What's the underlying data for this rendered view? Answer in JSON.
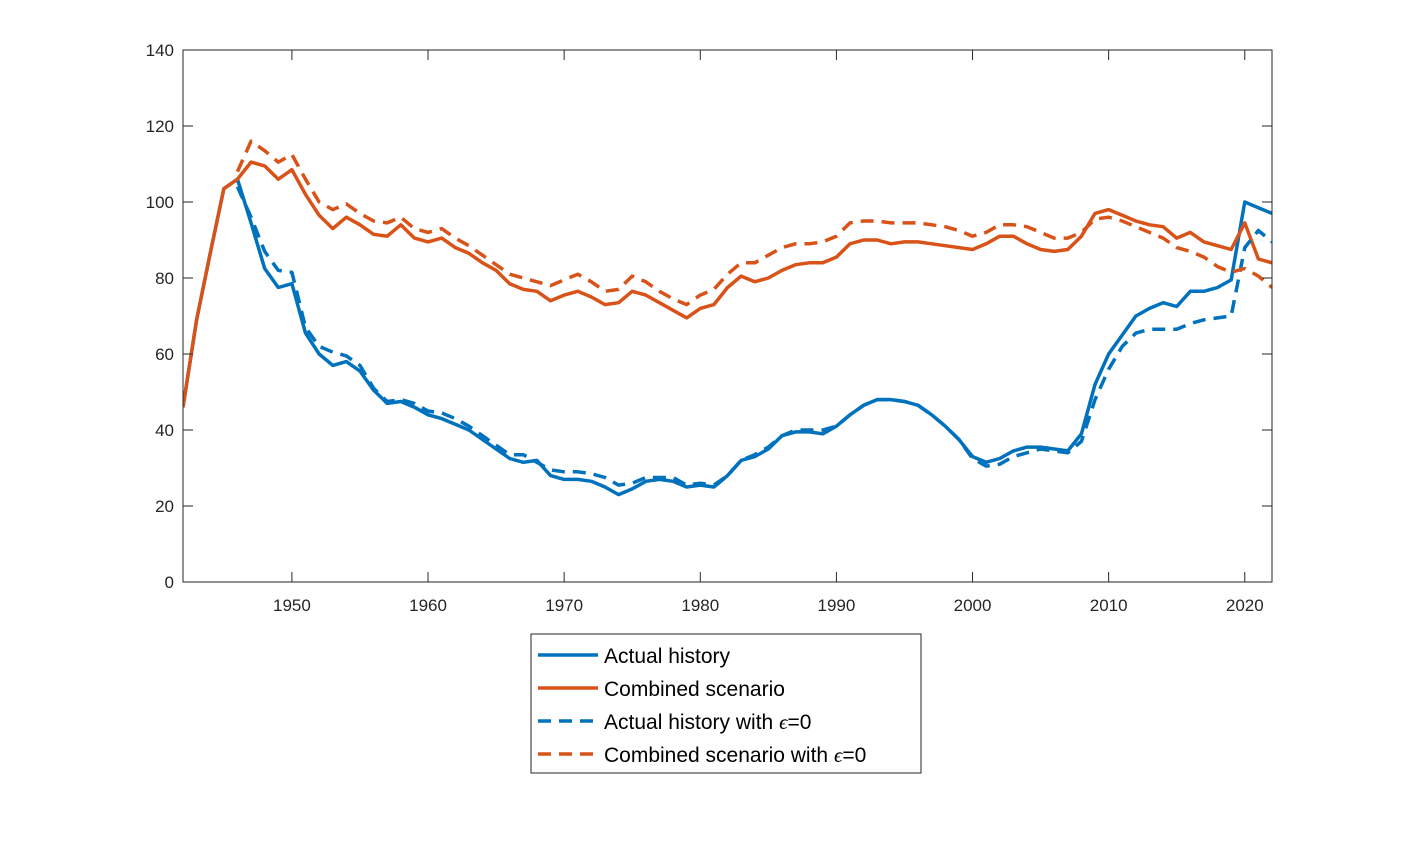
{
  "chart_data": {
    "type": "line",
    "title": "",
    "xlabel": "",
    "ylabel": "",
    "xlim": [
      1942,
      2022
    ],
    "ylim": [
      0,
      140
    ],
    "x_ticks": [
      1950,
      1960,
      1970,
      1980,
      1990,
      2000,
      2010,
      2020
    ],
    "y_ticks": [
      0,
      20,
      40,
      60,
      80,
      100,
      120,
      140
    ],
    "grid": false,
    "legend_position": "bottom-outside",
    "series": [
      {
        "name": "Actual history",
        "name_parts": [
          "Actual history",
          "",
          ""
        ],
        "color": "#0072BD",
        "dash": "solid",
        "x": [
          1942,
          1943,
          1944,
          1945,
          1946,
          1947,
          1948,
          1949,
          1950,
          1951,
          1952,
          1953,
          1954,
          1955,
          1956,
          1957,
          1958,
          1959,
          1960,
          1961,
          1962,
          1963,
          1964,
          1965,
          1966,
          1967,
          1968,
          1969,
          1970,
          1971,
          1972,
          1973,
          1974,
          1975,
          1976,
          1977,
          1978,
          1979,
          1980,
          1981,
          1982,
          1983,
          1984,
          1985,
          1986,
          1987,
          1988,
          1989,
          1990,
          1991,
          1992,
          1993,
          1994,
          1995,
          1996,
          1997,
          1998,
          1999,
          2000,
          2001,
          2002,
          2003,
          2004,
          2005,
          2006,
          2007,
          2008,
          2009,
          2010,
          2011,
          2012,
          2013,
          2014,
          2015,
          2016,
          2017,
          2018,
          2019,
          2020,
          2021,
          2022
        ],
        "values": [
          46,
          69,
          86.5,
          103.5,
          106,
          94.5,
          82.5,
          77.5,
          78.5,
          65.5,
          60,
          57,
          58,
          55.5,
          50.5,
          47,
          47.5,
          46,
          44,
          43,
          41.5,
          40,
          37.5,
          35,
          32.5,
          31.5,
          32,
          28,
          27,
          27,
          26.5,
          25,
          23,
          24.5,
          26.5,
          27,
          26.5,
          25,
          25.5,
          25,
          28,
          32,
          33,
          35,
          38.5,
          39.5,
          39.5,
          39,
          41,
          44,
          46.5,
          48,
          48,
          47.5,
          46.5,
          44,
          41,
          37.5,
          33,
          31.5,
          32.5,
          34.5,
          35.5,
          35.5,
          35,
          34.5,
          39,
          52,
          60,
          65,
          70,
          72,
          73.5,
          72.5,
          76.5,
          76.5,
          77.5,
          79.5,
          100,
          98.5,
          97
        ]
      },
      {
        "name": "Combined scenario",
        "name_parts": [
          "Combined scenario",
          "",
          ""
        ],
        "color": "#D95319",
        "dash": "solid",
        "x": [
          1942,
          1943,
          1944,
          1945,
          1946,
          1947,
          1948,
          1949,
          1950,
          1951,
          1952,
          1953,
          1954,
          1955,
          1956,
          1957,
          1958,
          1959,
          1960,
          1961,
          1962,
          1963,
          1964,
          1965,
          1966,
          1967,
          1968,
          1969,
          1970,
          1971,
          1972,
          1973,
          1974,
          1975,
          1976,
          1977,
          1978,
          1979,
          1980,
          1981,
          1982,
          1983,
          1984,
          1985,
          1986,
          1987,
          1988,
          1989,
          1990,
          1991,
          1992,
          1993,
          1994,
          1995,
          1996,
          1997,
          1998,
          1999,
          2000,
          2001,
          2002,
          2003,
          2004,
          2005,
          2006,
          2007,
          2008,
          2009,
          2010,
          2011,
          2012,
          2013,
          2014,
          2015,
          2016,
          2017,
          2018,
          2019,
          2020,
          2021,
          2022
        ],
        "values": [
          46,
          69,
          86.5,
          103.5,
          106,
          110.5,
          109.5,
          106,
          108.5,
          102,
          96.5,
          93,
          96,
          94,
          91.5,
          91,
          94,
          90.5,
          89.5,
          90.5,
          88,
          86.5,
          84,
          82,
          78.5,
          77,
          76.5,
          74,
          75.5,
          76.5,
          75,
          73,
          73.5,
          76.5,
          75.5,
          73.5,
          71.5,
          69.5,
          72,
          73,
          77.5,
          80.5,
          79,
          80,
          82,
          83.5,
          84,
          84,
          85.5,
          89,
          90,
          90,
          89,
          89.5,
          89.5,
          89,
          88.5,
          88,
          87.5,
          89,
          91,
          91,
          89,
          87.5,
          87,
          87.5,
          91,
          97,
          98,
          96.5,
          95,
          94,
          93.5,
          90.5,
          92,
          89.5,
          88.5,
          87.5,
          94.5,
          85,
          84
        ]
      },
      {
        "name": "Actual history with ϵ=0",
        "name_parts": [
          "Actual history with ",
          "ϵ",
          "=0"
        ],
        "color": "#0072BD",
        "dash": "dashed",
        "x": [
          1946,
          1947,
          1948,
          1949,
          1950,
          1951,
          1952,
          1953,
          1954,
          1955,
          1956,
          1957,
          1958,
          1959,
          1960,
          1961,
          1962,
          1963,
          1964,
          1965,
          1966,
          1967,
          1968,
          1969,
          1970,
          1971,
          1972,
          1973,
          1974,
          1975,
          1976,
          1977,
          1978,
          1979,
          1980,
          1981,
          1982,
          1983,
          1984,
          1985,
          1986,
          1987,
          1988,
          1989,
          1990,
          1991,
          1992,
          1993,
          1994,
          1995,
          1996,
          1997,
          1998,
          1999,
          2000,
          2001,
          2002,
          2003,
          2004,
          2005,
          2006,
          2007,
          2008,
          2009,
          2010,
          2011,
          2012,
          2013,
          2014,
          2015,
          2016,
          2017,
          2018,
          2019,
          2020,
          2021,
          2022
        ],
        "values": [
          104,
          96,
          87,
          82,
          81.5,
          67,
          62,
          60.5,
          59.5,
          57,
          51,
          47.5,
          48,
          47,
          45,
          44.5,
          43,
          41,
          38.5,
          36,
          33.5,
          33.5,
          31.5,
          29.5,
          29,
          29,
          28.5,
          27.5,
          25.5,
          26,
          27.5,
          27.5,
          27.5,
          25.5,
          26,
          25.5,
          28,
          32,
          33.5,
          35.5,
          38.5,
          40,
          40,
          40,
          41,
          44,
          46.5,
          48,
          48,
          47.5,
          46.5,
          44,
          41,
          37.5,
          32.5,
          30.5,
          31,
          33,
          34,
          35,
          34.5,
          34,
          37,
          48,
          56,
          62,
          65.5,
          66.5,
          66.5,
          66.5,
          68,
          69,
          69.5,
          70,
          88,
          92.5,
          89.5
        ]
      },
      {
        "name": "Combined scenario with ϵ=0",
        "name_parts": [
          "Combined scenario with ",
          "ϵ",
          "=0"
        ],
        "color": "#D95319",
        "dash": "dashed",
        "x": [
          1946,
          1947,
          1948,
          1949,
          1950,
          1951,
          1952,
          1953,
          1954,
          1955,
          1956,
          1957,
          1958,
          1959,
          1960,
          1961,
          1962,
          1963,
          1964,
          1965,
          1966,
          1967,
          1968,
          1969,
          1970,
          1971,
          1972,
          1973,
          1974,
          1975,
          1976,
          1977,
          1978,
          1979,
          1980,
          1981,
          1982,
          1983,
          1984,
          1985,
          1986,
          1987,
          1988,
          1989,
          1990,
          1991,
          1992,
          1993,
          1994,
          1995,
          1996,
          1997,
          1998,
          1999,
          2000,
          2001,
          2002,
          2003,
          2004,
          2005,
          2006,
          2007,
          2008,
          2009,
          2010,
          2011,
          2012,
          2013,
          2014,
          2015,
          2016,
          2017,
          2018,
          2019,
          2020,
          2021,
          2022
        ],
        "values": [
          108,
          116,
          113.5,
          110.5,
          112.5,
          106,
          100,
          98,
          99.5,
          97,
          95,
          94.5,
          96,
          93,
          92,
          93,
          90.5,
          88.5,
          86,
          83.5,
          81,
          80,
          79,
          78,
          79.5,
          81,
          79,
          76.5,
          77,
          80.5,
          79,
          76.5,
          74.5,
          73,
          75.5,
          77,
          81,
          84,
          84,
          86,
          88,
          89,
          89,
          89.5,
          91,
          94.5,
          95,
          95,
          94.5,
          94.5,
          94.5,
          94,
          93.5,
          92.5,
          91,
          92,
          94,
          94,
          93.5,
          92,
          90.5,
          90.5,
          92,
          95.5,
          96,
          95,
          93.5,
          92,
          90.5,
          88,
          87,
          85.5,
          83,
          81.5,
          82.5,
          80.5,
          77.5
        ]
      }
    ]
  },
  "colors": {
    "axis": "#262626",
    "legend_border": "#262626",
    "background": "#ffffff"
  }
}
